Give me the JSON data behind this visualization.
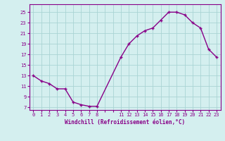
{
  "x": [
    0,
    1,
    2,
    3,
    4,
    5,
    6,
    7,
    8,
    11,
    12,
    13,
    14,
    15,
    16,
    17,
    18,
    19,
    20,
    21,
    22,
    23
  ],
  "y": [
    13.0,
    12.0,
    11.5,
    10.5,
    10.5,
    8.0,
    7.5,
    7.2,
    7.2,
    16.5,
    19.0,
    20.5,
    21.5,
    22.0,
    23.5,
    25.0,
    25.0,
    24.5,
    23.0,
    22.0,
    18.0,
    16.5
  ],
  "line_color": "#880088",
  "marker": "+",
  "bg_color": "#d4efef",
  "grid_color": "#aad4d4",
  "axis_color": "#880088",
  "xlabel": "Windchill (Refroidissement éolien,°C)",
  "yticks": [
    7,
    9,
    11,
    13,
    15,
    17,
    19,
    21,
    23,
    25
  ],
  "ylim": [
    6.5,
    26.5
  ],
  "xlim": [
    -0.5,
    23.5
  ],
  "font_color": "#880088",
  "tick_fontsize": 5.0,
  "xlabel_fontsize": 5.5
}
